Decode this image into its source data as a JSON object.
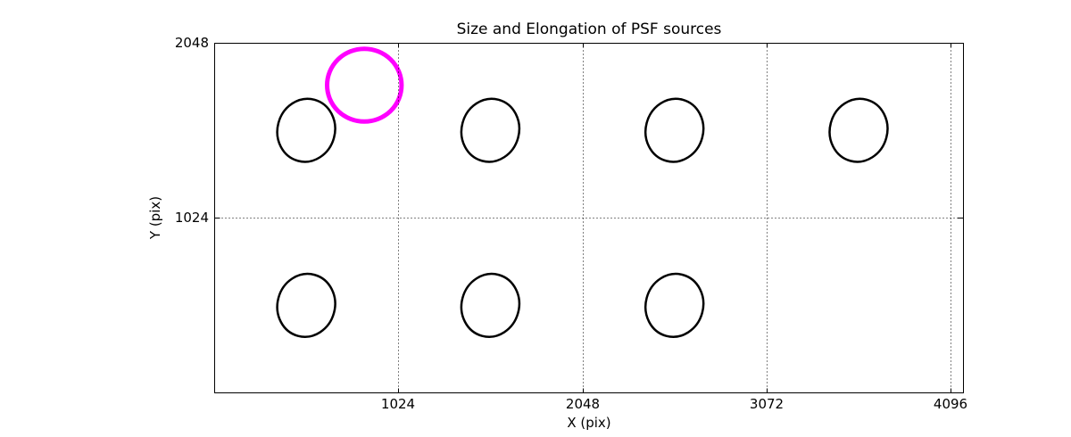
{
  "colors": {
    "background": "#FFFFFF",
    "axes": "#000000",
    "source": "#000000",
    "flagged_source": "#FF00FF"
  },
  "chart_data": {
    "type": "scatter",
    "marker": "ellipse",
    "title": "Size and Elongation of PSF sources",
    "xlabel": "X (pix)",
    "ylabel": "Y (pix)",
    "xlim": [
      0,
      4170
    ],
    "ylim": [
      0,
      2048
    ],
    "xticks": [
      1024,
      2048,
      3072,
      4096
    ],
    "yticks": [
      1024,
      2048
    ],
    "grid": {
      "on": true,
      "linestyle": "dotted",
      "color": "#000000",
      "above_markers": true
    },
    "legend": "none",
    "sources": [
      {
        "x": 512,
        "y": 1536,
        "semi_x": 160,
        "semi_y": 185,
        "angle_deg": 15,
        "color": "#000000",
        "linewidth": 2.5,
        "flagged": false
      },
      {
        "x": 1536,
        "y": 1536,
        "semi_x": 160,
        "semi_y": 185,
        "angle_deg": 15,
        "color": "#000000",
        "linewidth": 2.5,
        "flagged": false
      },
      {
        "x": 2560,
        "y": 1536,
        "semi_x": 160,
        "semi_y": 185,
        "angle_deg": 15,
        "color": "#000000",
        "linewidth": 2.5,
        "flagged": false
      },
      {
        "x": 3584,
        "y": 1536,
        "semi_x": 160,
        "semi_y": 185,
        "angle_deg": 15,
        "color": "#000000",
        "linewidth": 2.5,
        "flagged": false
      },
      {
        "x": 512,
        "y": 512,
        "semi_x": 160,
        "semi_y": 185,
        "angle_deg": 15,
        "color": "#000000",
        "linewidth": 2.5,
        "flagged": false
      },
      {
        "x": 1536,
        "y": 512,
        "semi_x": 160,
        "semi_y": 185,
        "angle_deg": 15,
        "color": "#000000",
        "linewidth": 2.5,
        "flagged": false
      },
      {
        "x": 2560,
        "y": 512,
        "semi_x": 160,
        "semi_y": 185,
        "angle_deg": 15,
        "color": "#000000",
        "linewidth": 2.5,
        "flagged": false
      },
      {
        "x": 835,
        "y": 1800,
        "semi_x": 207,
        "semi_y": 213,
        "angle_deg": 0,
        "color": "#FF00FF",
        "linewidth": 5,
        "flagged": true
      }
    ]
  }
}
